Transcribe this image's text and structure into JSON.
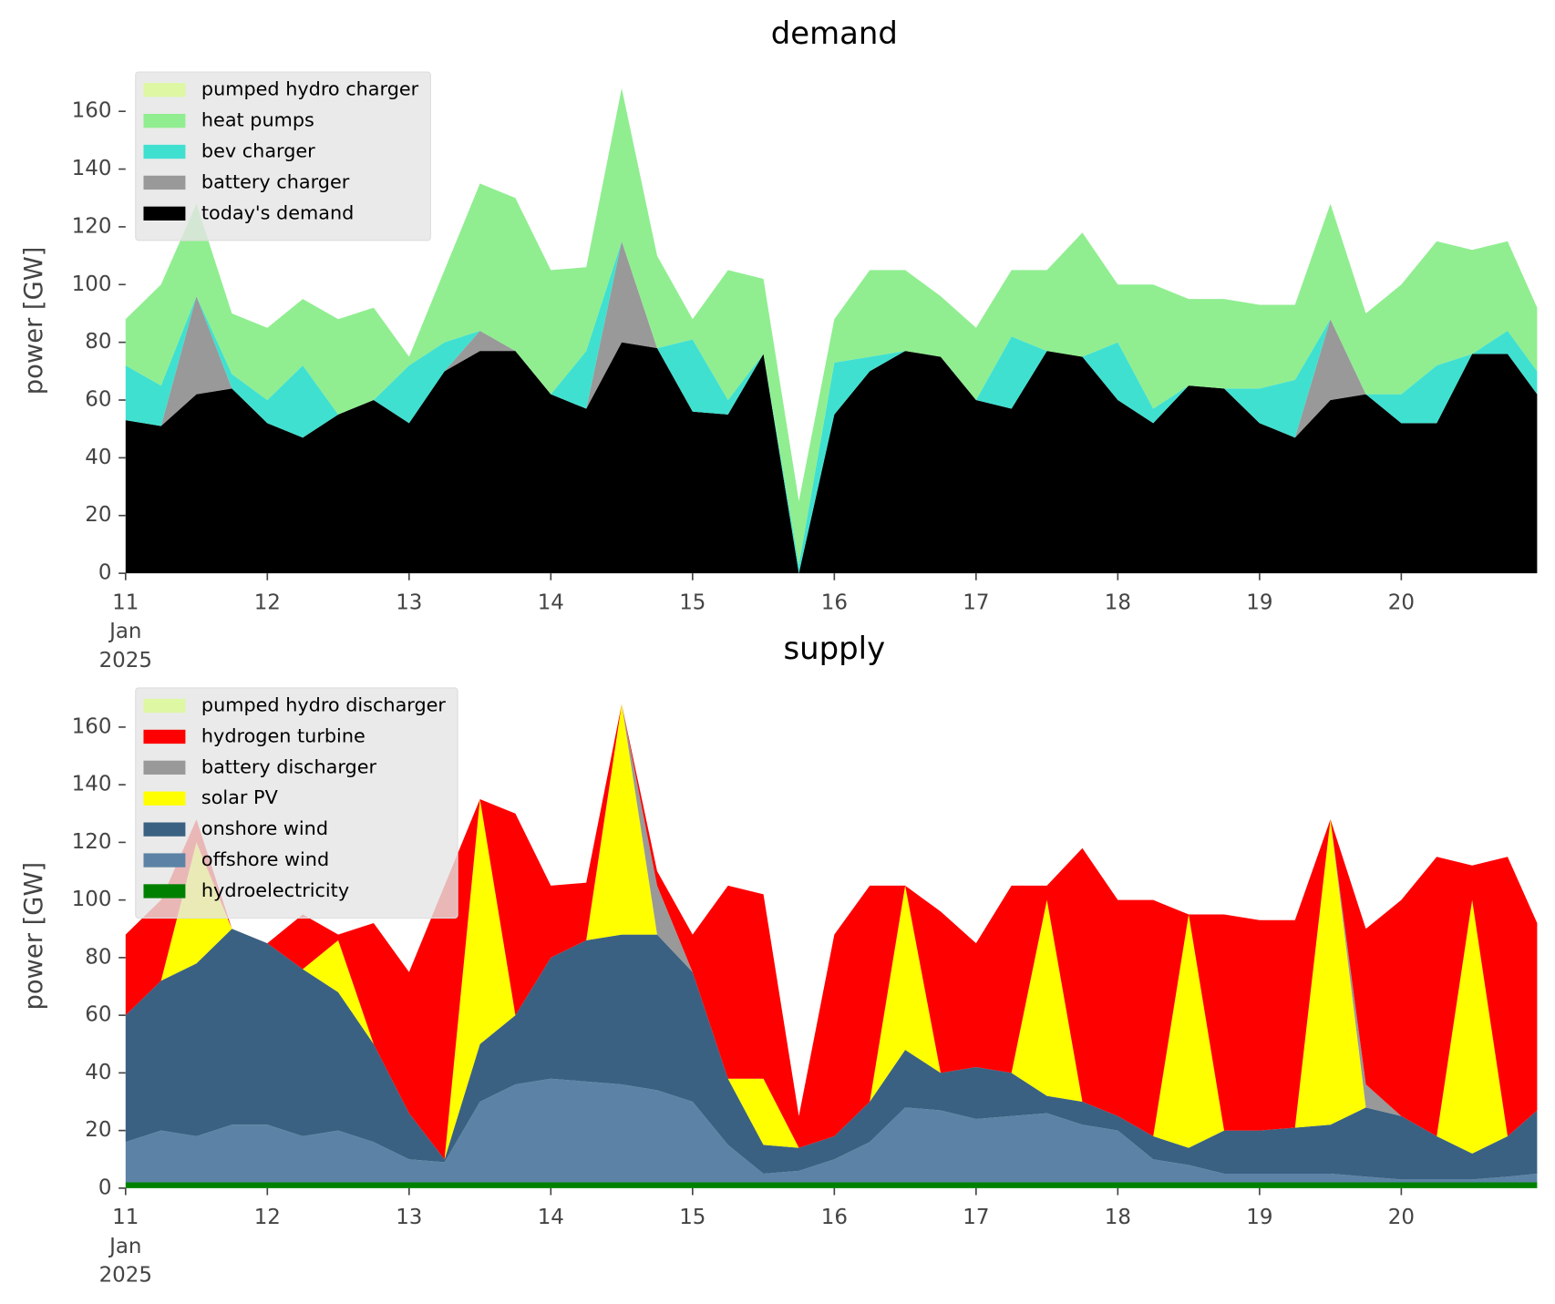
{
  "chart_data": [
    {
      "type": "stacked-area",
      "title": "demand",
      "y_label": "power [GW]",
      "x": [
        "2025-01-11T00:00",
        "2025-01-11T06:00",
        "2025-01-11T12:00",
        "2025-01-11T18:00",
        "2025-01-12T00:00",
        "2025-01-12T06:00",
        "2025-01-12T12:00",
        "2025-01-12T18:00",
        "2025-01-13T00:00",
        "2025-01-13T06:00",
        "2025-01-13T12:00",
        "2025-01-13T18:00",
        "2025-01-14T00:00",
        "2025-01-14T06:00",
        "2025-01-14T12:00",
        "2025-01-14T18:00",
        "2025-01-15T00:00",
        "2025-01-15T06:00",
        "2025-01-15T12:00",
        "2025-01-15T18:00",
        "2025-01-16T00:00",
        "2025-01-16T06:00",
        "2025-01-16T12:00",
        "2025-01-16T18:00",
        "2025-01-17T00:00",
        "2025-01-17T06:00",
        "2025-01-17T12:00",
        "2025-01-17T18:00",
        "2025-01-18T00:00",
        "2025-01-18T06:00",
        "2025-01-18T12:00",
        "2025-01-18T18:00",
        "2025-01-19T00:00",
        "2025-01-19T06:00",
        "2025-01-19T12:00",
        "2025-01-19T18:00",
        "2025-01-20T00:00",
        "2025-01-20T06:00",
        "2025-01-20T12:00",
        "2025-01-20T18:00",
        "2025-01-20T23:00"
      ],
      "series": [
        {
          "name": "today's demand",
          "color": "#000000",
          "values": [
            53,
            51,
            62,
            64,
            52,
            47,
            55,
            60,
            52,
            70,
            77,
            77,
            62,
            57,
            80,
            78,
            56,
            55,
            76,
            0,
            55,
            70,
            77,
            75,
            60,
            57,
            77,
            75,
            60,
            52,
            65,
            64,
            52,
            47,
            60,
            62,
            52,
            52,
            76,
            76,
            62
          ]
        },
        {
          "name": "battery charger",
          "color": "#999999",
          "values": [
            0,
            0,
            34,
            0,
            0,
            0,
            0,
            0,
            0,
            0,
            7,
            0,
            0,
            0,
            35,
            0,
            0,
            0,
            0,
            0,
            0,
            0,
            0,
            0,
            0,
            0,
            0,
            0,
            0,
            0,
            0,
            0,
            0,
            0,
            28,
            0,
            0,
            0,
            0,
            0,
            0
          ]
        },
        {
          "name": "bev charger",
          "color": "#40e0d0",
          "values": [
            19,
            14,
            0,
            5,
            8,
            25,
            0,
            0,
            20,
            10,
            0,
            0,
            0,
            20,
            0,
            0,
            25,
            5,
            0,
            3,
            18,
            5,
            0,
            0,
            0,
            25,
            0,
            0,
            20,
            5,
            0,
            0,
            12,
            20,
            0,
            0,
            10,
            20,
            0,
            8,
            8
          ]
        },
        {
          "name": "heat pumps",
          "color": "#90ee90",
          "values": [
            16,
            35,
            32,
            21,
            25,
            23,
            33,
            32,
            3,
            25,
            51,
            53,
            43,
            29,
            53,
            32,
            7,
            45,
            26,
            22,
            15,
            30,
            28,
            21,
            25,
            23,
            28,
            43,
            20,
            43,
            30,
            31,
            29,
            26,
            40,
            28,
            38,
            43,
            36,
            31,
            22
          ]
        },
        {
          "name": "pumped hydro charger",
          "color": "#ddf7a3",
          "values": [
            0,
            0,
            0,
            0,
            0,
            0,
            0,
            0,
            0,
            0,
            0,
            0,
            0,
            0,
            0,
            0,
            0,
            0,
            0,
            0,
            0,
            0,
            0,
            0,
            0,
            0,
            0,
            0,
            0,
            0,
            0,
            0,
            0,
            0,
            0,
            0,
            0,
            0,
            0,
            0,
            0
          ]
        }
      ],
      "xlim": [
        "2025-01-11",
        "2025-01-21"
      ],
      "xticks": [
        {
          "value": "2025-01-11",
          "label": "11\nJan\n2025"
        },
        {
          "value": "2025-01-12",
          "label": "12"
        },
        {
          "value": "2025-01-13",
          "label": "13"
        },
        {
          "value": "2025-01-14",
          "label": "14"
        },
        {
          "value": "2025-01-15",
          "label": "15"
        },
        {
          "value": "2025-01-16",
          "label": "16"
        },
        {
          "value": "2025-01-17",
          "label": "17"
        },
        {
          "value": "2025-01-18",
          "label": "18"
        },
        {
          "value": "2025-01-19",
          "label": "19"
        },
        {
          "value": "2025-01-20",
          "label": "20"
        }
      ],
      "ylim": [
        0,
        175
      ],
      "yticks": [
        0,
        20,
        40,
        60,
        80,
        100,
        120,
        140,
        160
      ],
      "legend": "upper left"
    },
    {
      "type": "stacked-area",
      "title": "supply",
      "y_label": "power [GW]",
      "x": [
        "2025-01-11T00:00",
        "2025-01-11T06:00",
        "2025-01-11T12:00",
        "2025-01-11T18:00",
        "2025-01-12T00:00",
        "2025-01-12T06:00",
        "2025-01-12T12:00",
        "2025-01-12T18:00",
        "2025-01-13T00:00",
        "2025-01-13T06:00",
        "2025-01-13T12:00",
        "2025-01-13T18:00",
        "2025-01-14T00:00",
        "2025-01-14T06:00",
        "2025-01-14T12:00",
        "2025-01-14T18:00",
        "2025-01-15T00:00",
        "2025-01-15T06:00",
        "2025-01-15T12:00",
        "2025-01-15T18:00",
        "2025-01-16T00:00",
        "2025-01-16T06:00",
        "2025-01-16T12:00",
        "2025-01-16T18:00",
        "2025-01-17T00:00",
        "2025-01-17T06:00",
        "2025-01-17T12:00",
        "2025-01-17T18:00",
        "2025-01-18T00:00",
        "2025-01-18T06:00",
        "2025-01-18T12:00",
        "2025-01-18T18:00",
        "2025-01-19T00:00",
        "2025-01-19T06:00",
        "2025-01-19T12:00",
        "2025-01-19T18:00",
        "2025-01-20T00:00",
        "2025-01-20T06:00",
        "2025-01-20T12:00",
        "2025-01-20T18:00",
        "2025-01-20T23:00"
      ],
      "series": [
        {
          "name": "hydroelectricity",
          "color": "#008000",
          "values": [
            2,
            2,
            2,
            2,
            2,
            2,
            2,
            2,
            2,
            2,
            2,
            2,
            2,
            2,
            2,
            2,
            2,
            2,
            2,
            2,
            2,
            2,
            2,
            2,
            2,
            2,
            2,
            2,
            2,
            2,
            2,
            2,
            2,
            2,
            2,
            2,
            2,
            2,
            2,
            2,
            2
          ]
        },
        {
          "name": "offshore wind",
          "color": "#5c83a6",
          "values": [
            14,
            18,
            16,
            20,
            20,
            16,
            18,
            14,
            8,
            7,
            28,
            34,
            36,
            35,
            34,
            32,
            28,
            13,
            3,
            4,
            8,
            14,
            26,
            25,
            22,
            23,
            24,
            20,
            18,
            8,
            6,
            3,
            3,
            3,
            3,
            2,
            1,
            1,
            1,
            2,
            3
          ]
        },
        {
          "name": "onshore wind",
          "color": "#3b6182",
          "values": [
            44,
            52,
            60,
            68,
            63,
            58,
            48,
            34,
            16,
            1,
            20,
            24,
            42,
            49,
            52,
            54,
            45,
            23,
            10,
            8,
            8,
            14,
            20,
            13,
            18,
            15,
            6,
            8,
            5,
            8,
            6,
            15,
            15,
            16,
            17,
            24,
            22,
            15,
            9,
            14,
            22
          ]
        },
        {
          "name": "solar PV",
          "color": "#ffff00",
          "values": [
            0,
            0,
            42,
            0,
            0,
            0,
            18,
            0,
            0,
            0,
            85,
            0,
            0,
            0,
            80,
            0,
            0,
            0,
            23,
            0,
            0,
            0,
            57,
            0,
            0,
            0,
            68,
            0,
            0,
            0,
            81,
            0,
            0,
            0,
            106,
            0,
            0,
            0,
            88,
            0,
            0
          ]
        },
        {
          "name": "battery discharger",
          "color": "#999999",
          "values": [
            0,
            0,
            0,
            0,
            0,
            0,
            0,
            0,
            0,
            0,
            0,
            0,
            0,
            0,
            0,
            17,
            0,
            0,
            0,
            0,
            0,
            0,
            0,
            0,
            0,
            0,
            0,
            0,
            0,
            0,
            0,
            0,
            0,
            0,
            0,
            8,
            0,
            0,
            0,
            0,
            0
          ]
        },
        {
          "name": "hydrogen turbine",
          "color": "#ff0000",
          "values": [
            28,
            28,
            8,
            0,
            0,
            19,
            2,
            42,
            49,
            95,
            0,
            70,
            25,
            20,
            0,
            5,
            13,
            67,
            64,
            11,
            70,
            75,
            0,
            56,
            43,
            65,
            5,
            88,
            75,
            82,
            0,
            75,
            73,
            72,
            0,
            54,
            75,
            97,
            12,
            97,
            65
          ]
        },
        {
          "name": "pumped hydro discharger",
          "color": "#ddf7a3",
          "values": [
            0,
            0,
            0,
            0,
            0,
            0,
            0,
            0,
            0,
            0,
            0,
            0,
            0,
            0,
            0,
            0,
            0,
            0,
            0,
            0,
            0,
            0,
            0,
            0,
            0,
            0,
            0,
            0,
            0,
            0,
            0,
            0,
            0,
            0,
            0,
            0,
            0,
            0,
            0,
            0,
            0
          ]
        }
      ],
      "xlim": [
        "2025-01-11",
        "2025-01-21"
      ],
      "xticks": [
        {
          "value": "2025-01-11",
          "label": "11\nJan\n2025"
        },
        {
          "value": "2025-01-12",
          "label": "12"
        },
        {
          "value": "2025-01-13",
          "label": "13"
        },
        {
          "value": "2025-01-14",
          "label": "14"
        },
        {
          "value": "2025-01-15",
          "label": "15"
        },
        {
          "value": "2025-01-16",
          "label": "16"
        },
        {
          "value": "2025-01-17",
          "label": "17"
        },
        {
          "value": "2025-01-18",
          "label": "18"
        },
        {
          "value": "2025-01-19",
          "label": "19"
        },
        {
          "value": "2025-01-20",
          "label": "20"
        }
      ],
      "ylim": [
        0,
        175
      ],
      "yticks": [
        0,
        20,
        40,
        60,
        80,
        100,
        120,
        140,
        160
      ],
      "legend": "upper left"
    }
  ]
}
